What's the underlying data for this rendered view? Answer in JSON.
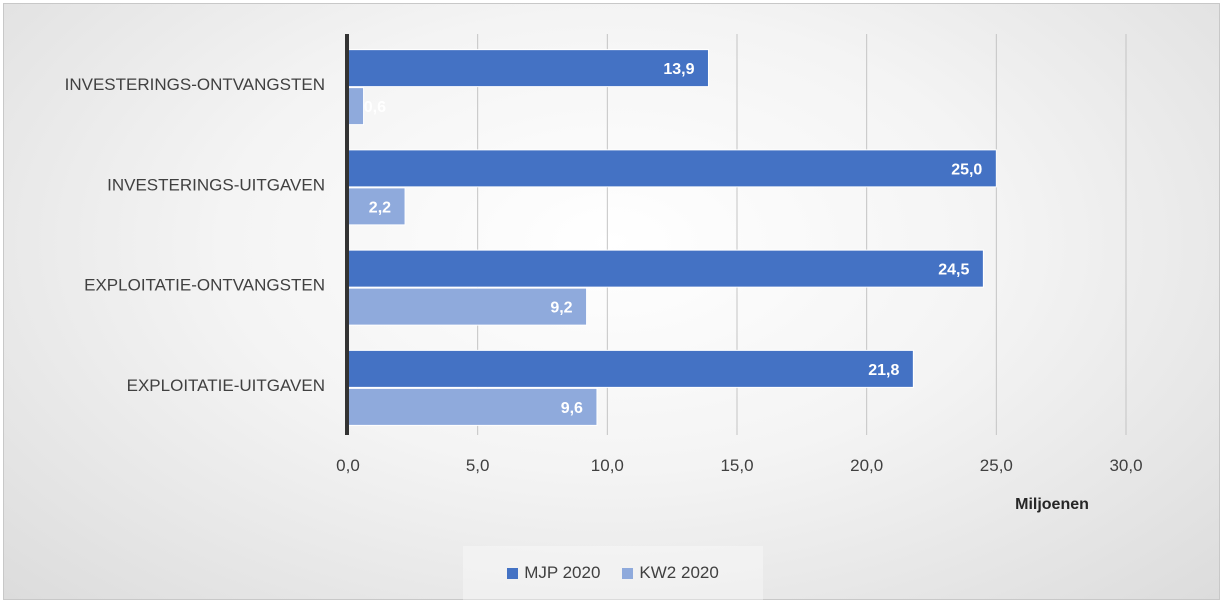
{
  "chart_data": {
    "type": "bar",
    "orientation": "horizontal",
    "categories": [
      "INVESTERINGS-ONTVANGSTEN",
      "INVESTERINGS-UITGAVEN",
      "EXPLOITATIE-ONTVANGSTEN",
      "EXPLOITATIE-UITGAVEN"
    ],
    "series": [
      {
        "name": "MJP 2020",
        "color": "#4472C4",
        "values": [
          13.9,
          25.0,
          24.5,
          21.8
        ],
        "labels": [
          "13,9",
          "25,0",
          "24,5",
          "21,8"
        ]
      },
      {
        "name": "KW2 2020",
        "color": "#8FAADC",
        "values": [
          0.6,
          2.2,
          9.2,
          9.6
        ],
        "labels": [
          "0,6",
          "2,2",
          "9,2",
          "9,6"
        ]
      }
    ],
    "xlim": [
      0,
      30
    ],
    "xticks": [
      0,
      5,
      10,
      15,
      20,
      25,
      30
    ],
    "xtick_labels": [
      "0,0",
      "5,0",
      "10,0",
      "15,0",
      "20,0",
      "25,0",
      "30,0"
    ],
    "xlabel": "Miljoenen",
    "title": "",
    "grid": "vertical",
    "legend": "bottom"
  }
}
